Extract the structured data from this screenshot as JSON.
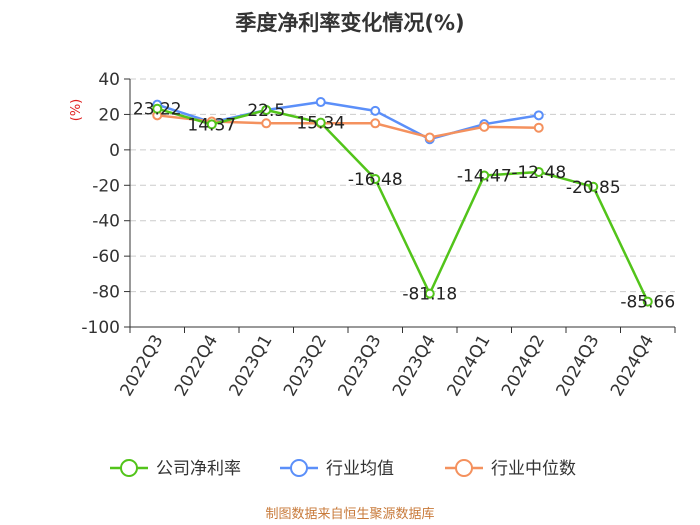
{
  "chart_data": {
    "type": "line",
    "title": "季度净利率变化情况(%)",
    "ylabel": "(%)",
    "xlabel": "",
    "categories": [
      "2022Q3",
      "2022Q4",
      "2023Q1",
      "2023Q2",
      "2023Q3",
      "2023Q4",
      "2024Q1",
      "2024Q2",
      "2024Q3",
      "2024Q4"
    ],
    "ylim": [
      -100,
      40
    ],
    "yticks": [
      40,
      20,
      0,
      -20,
      -40,
      -60,
      -80,
      -100
    ],
    "grid": "horizontal-dashed",
    "legend_position": "bottom",
    "series": [
      {
        "name": "公司净利率",
        "color": "#52c41a",
        "values": [
          23.22,
          14.37,
          22.5,
          15.34,
          -16.48,
          -81.18,
          -14.47,
          -12.48,
          -20.85,
          -85.66
        ],
        "labels": [
          "23.22",
          "14.37",
          "22.5",
          "15.34",
          "-16.48",
          "-81.18",
          "-14.47",
          "-12.48",
          "-20.85",
          "-85.66"
        ]
      },
      {
        "name": "行业均值",
        "color": "#5b8ff9",
        "values": [
          25.5,
          15.5,
          22.5,
          27.0,
          22.0,
          6.0,
          14.5,
          19.5,
          null,
          null
        ]
      },
      {
        "name": "行业中位数",
        "color": "#f4915e",
        "values": [
          19.5,
          16.0,
          15.0,
          15.0,
          15.0,
          7.0,
          13.0,
          12.5,
          null,
          null
        ]
      }
    ]
  },
  "source_text": "制图数据来自恒生聚源数据库",
  "colors": {
    "unit": "#e02020",
    "source": "#c87a3a",
    "axis": "#333333",
    "grid": "#cccccc"
  }
}
